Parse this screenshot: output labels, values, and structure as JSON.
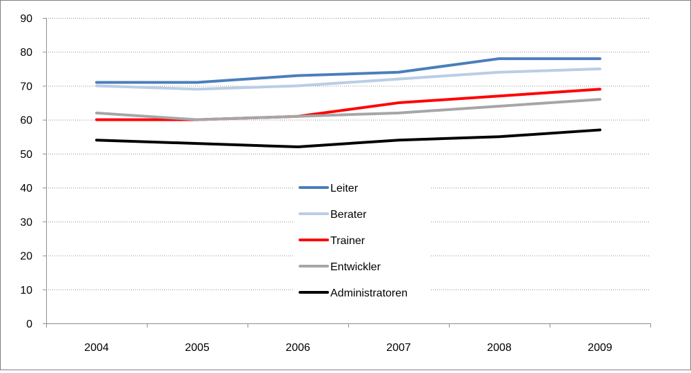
{
  "chart_data": {
    "type": "line",
    "title": "",
    "xlabel": "",
    "ylabel": "",
    "categories": [
      "2004",
      "2005",
      "2006",
      "2007",
      "2008",
      "2009"
    ],
    "ylim": [
      0,
      90
    ],
    "yticks": [
      "0",
      "10",
      "20",
      "30",
      "40",
      "50",
      "60",
      "70",
      "80",
      "90"
    ],
    "grid": "horizontal dotted",
    "legend_placement": "center",
    "series": [
      {
        "name": "Leiter",
        "color": "#4a7ebb",
        "values": [
          71,
          71,
          73,
          74,
          78,
          78
        ]
      },
      {
        "name": "Berater",
        "color": "#b9cde5",
        "values": [
          70,
          69,
          70,
          72,
          74,
          75
        ]
      },
      {
        "name": "Trainer",
        "color": "#ff0000",
        "values": [
          60,
          60,
          61,
          65,
          67,
          69
        ]
      },
      {
        "name": "Entwickler",
        "color": "#a6a6a6",
        "values": [
          62,
          60,
          61,
          62,
          64,
          66
        ]
      },
      {
        "name": "Administratoren",
        "color": "#000000",
        "values": [
          54,
          53,
          52,
          54,
          55,
          57
        ]
      }
    ]
  }
}
